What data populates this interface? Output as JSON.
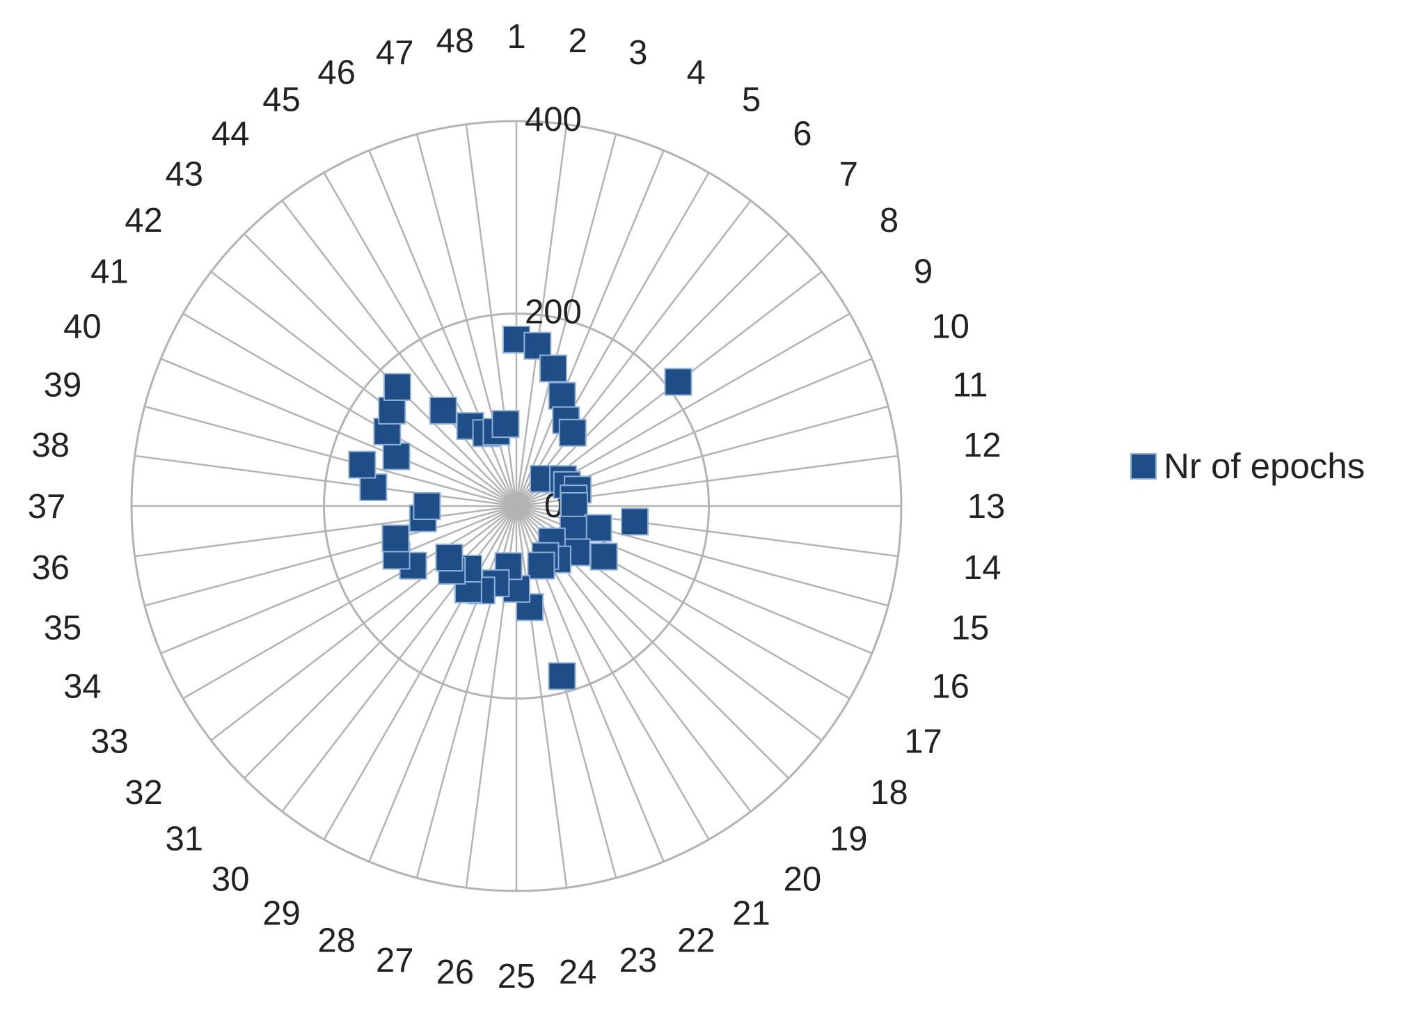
{
  "chart_data": {
    "type": "radar",
    "categories": [
      "1",
      "2",
      "3",
      "4",
      "5",
      "6",
      "7",
      "8",
      "9",
      "10",
      "11",
      "12",
      "13",
      "14",
      "15",
      "16",
      "17",
      "18",
      "19",
      "20",
      "21",
      "22",
      "23",
      "24",
      "25",
      "26",
      "27",
      "28",
      "29",
      "30",
      "31",
      "32",
      "33",
      "34",
      "35",
      "36",
      "37",
      "38",
      "39",
      "40",
      "41",
      "42",
      "43",
      "44",
      "45",
      "46",
      "47",
      "48"
    ],
    "series": [
      {
        "name": "Nr of epochs",
        "values": [
          173,
          168,
          148,
          124,
          103,
          96,
          40,
          212,
          56,
          57,
          66,
          60,
          60,
          124,
          88,
          64,
          105,
          79,
          52,
          70,
          60,
          67,
          183,
          106,
          86,
          63,
          83,
          95,
          100,
          82,
          95,
          88,
          124,
          135,
          130,
          98,
          93,
          150,
          166,
          135,
          155,
          163,
          175,
          125,
          96,
          82,
          80,
          86
        ]
      }
    ],
    "rlim": [
      0,
      400
    ],
    "tick_values": [
      0,
      200,
      400
    ],
    "tick_labels": [
      "0",
      "200",
      "400"
    ],
    "marker": "square",
    "series_color": "#1f4e86",
    "grid_color": "#b3b3b3",
    "legend_position": "right"
  }
}
